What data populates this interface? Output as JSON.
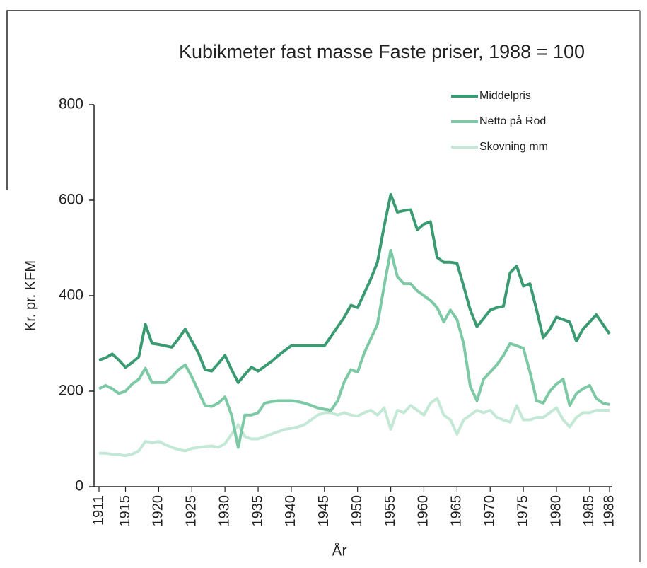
{
  "chart_data": {
    "type": "line",
    "title": "Kubikmeter fast masse  Faste priser, 1988 = 100",
    "y_label": "Kr. pr. KFM",
    "x_label": "År",
    "x": [
      1911,
      1912,
      1913,
      1914,
      1915,
      1916,
      1917,
      1918,
      1919,
      1920,
      1921,
      1922,
      1923,
      1924,
      1925,
      1926,
      1927,
      1928,
      1929,
      1930,
      1931,
      1932,
      1933,
      1934,
      1935,
      1936,
      1937,
      1938,
      1939,
      1940,
      1941,
      1942,
      1943,
      1944,
      1945,
      1946,
      1947,
      1948,
      1949,
      1950,
      1951,
      1952,
      1953,
      1954,
      1955,
      1956,
      1957,
      1958,
      1959,
      1960,
      1961,
      1962,
      1963,
      1964,
      1965,
      1966,
      1967,
      1968,
      1969,
      1970,
      1971,
      1972,
      1973,
      1974,
      1975,
      1976,
      1977,
      1978,
      1979,
      1980,
      1981,
      1982,
      1983,
      1984,
      1985,
      1986,
      1987,
      1988
    ],
    "series": [
      {
        "name": "Middelpris",
        "color": "#3a9a72",
        "values": [
          265,
          270,
          278,
          265,
          250,
          260,
          272,
          340,
          300,
          298,
          295,
          292,
          310,
          330,
          305,
          280,
          245,
          242,
          258,
          275,
          245,
          218,
          235,
          250,
          242,
          252,
          262,
          274,
          285,
          295,
          295,
          295,
          295,
          295,
          295,
          315,
          335,
          355,
          380,
          375,
          405,
          435,
          470,
          545,
          612,
          575,
          578,
          580,
          538,
          550,
          555,
          480,
          470,
          470,
          468,
          420,
          370,
          335,
          352,
          370,
          375,
          378,
          448,
          462,
          420,
          425,
          370,
          312,
          330,
          355,
          350,
          345,
          305,
          330,
          345,
          360,
          340,
          320
        ]
      },
      {
        "name": "Netto på Rod",
        "color": "#7dc9a5",
        "values": [
          205,
          212,
          205,
          195,
          200,
          215,
          225,
          248,
          218,
          218,
          218,
          230,
          245,
          255,
          230,
          200,
          170,
          168,
          175,
          188,
          150,
          82,
          150,
          150,
          155,
          175,
          178,
          180,
          180,
          180,
          178,
          175,
          170,
          165,
          162,
          160,
          180,
          220,
          245,
          240,
          280,
          310,
          340,
          420,
          495,
          440,
          425,
          425,
          410,
          400,
          390,
          375,
          345,
          370,
          350,
          300,
          210,
          180,
          225,
          240,
          255,
          275,
          300,
          295,
          290,
          240,
          180,
          175,
          200,
          215,
          225,
          170,
          195,
          205,
          212,
          185,
          175,
          172
        ]
      },
      {
        "name": "Skovning mm",
        "color": "#c4e8d6",
        "values": [
          70,
          70,
          68,
          67,
          65,
          68,
          75,
          95,
          92,
          95,
          88,
          82,
          78,
          75,
          80,
          82,
          84,
          85,
          82,
          90,
          110,
          130,
          105,
          100,
          100,
          105,
          110,
          115,
          120,
          122,
          125,
          130,
          140,
          150,
          155,
          155,
          150,
          155,
          150,
          148,
          155,
          160,
          150,
          165,
          120,
          160,
          155,
          170,
          160,
          150,
          175,
          185,
          150,
          140,
          110,
          140,
          150,
          160,
          155,
          160,
          145,
          140,
          135,
          170,
          140,
          140,
          145,
          145,
          155,
          165,
          140,
          125,
          145,
          155,
          155,
          160,
          160,
          160
        ]
      }
    ],
    "xlim": [
      1911,
      1988
    ],
    "xticks": [
      1911,
      1915,
      1920,
      1925,
      1930,
      1935,
      1940,
      1945,
      1950,
      1955,
      1960,
      1965,
      1970,
      1975,
      1980,
      1985,
      1988
    ],
    "ylim": [
      0,
      800
    ],
    "yticks": [
      0,
      200,
      400,
      600,
      800
    ],
    "legend": "top-right"
  }
}
